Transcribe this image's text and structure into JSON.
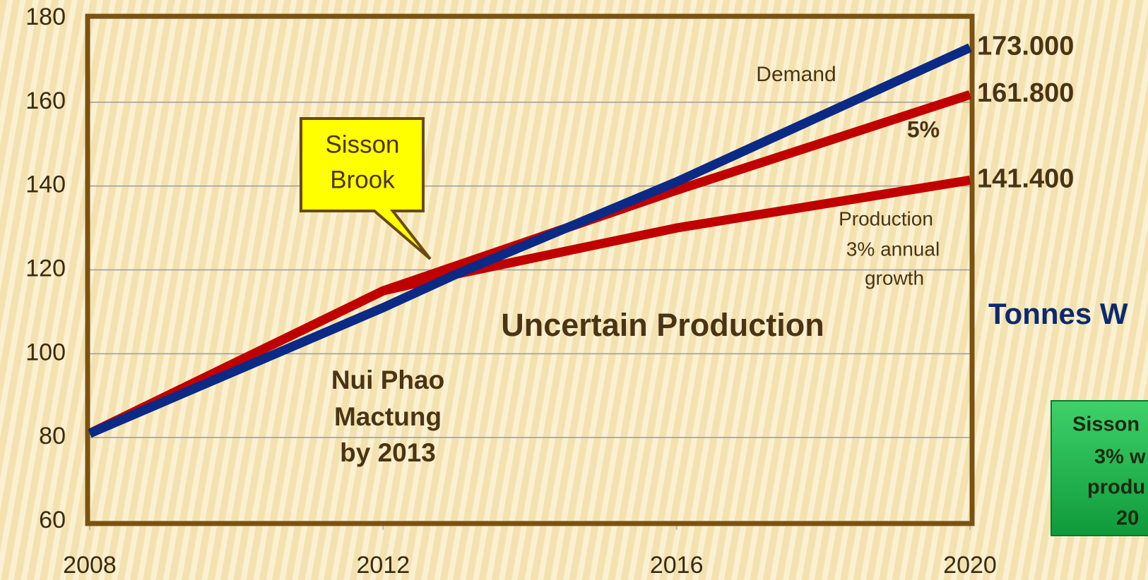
{
  "chart_data": {
    "type": "line",
    "x": [
      2008,
      2012,
      2013,
      2016,
      2020
    ],
    "xlim": [
      2008,
      2020
    ],
    "xticks": [
      2008,
      2012,
      2016,
      2020
    ],
    "ylim": [
      60,
      180
    ],
    "yticks": [
      60,
      80,
      100,
      120,
      140,
      160,
      180
    ],
    "grid": true,
    "series": [
      {
        "name": "Demand",
        "color": "#0b2a86",
        "values": [
          81,
          111,
          119,
          141,
          173
        ],
        "value_labels": [
          null,
          null,
          null,
          null,
          "173.000"
        ]
      },
      {
        "name": "5%",
        "color": "#c00000",
        "values": [
          81,
          115,
          121,
          139,
          161.8
        ],
        "value_labels": [
          null,
          null,
          null,
          null,
          "161.800"
        ]
      },
      {
        "name": "Production",
        "color": "#c00000",
        "values": [
          81,
          115,
          119,
          130,
          141.4
        ],
        "value_labels": [
          null,
          null,
          null,
          null,
          "141.400"
        ]
      }
    ],
    "annotations": {
      "production_detail": [
        "3% annual",
        "growth"
      ],
      "uncertain": "Uncertain Production",
      "nui_phao": [
        "Nui Phao",
        "Mactung",
        "by 2013"
      ],
      "callout": [
        "Sisson",
        "Brook"
      ],
      "side_title": "Tonnes W",
      "green_box": [
        "Sisson",
        "3% w",
        "produ",
        "20"
      ]
    }
  }
}
